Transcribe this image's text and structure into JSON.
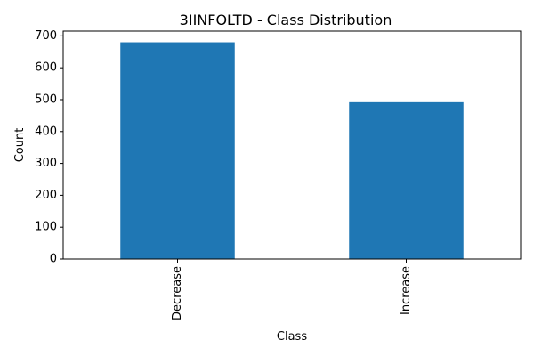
{
  "chart_data": {
    "type": "bar",
    "title": "3IINFOLTD - Class Distribution",
    "xlabel": "Class",
    "ylabel": "Count",
    "categories": [
      "Decrease",
      "Increase"
    ],
    "values": [
      680,
      492
    ],
    "ylim": [
      0,
      715
    ],
    "yticks": [
      0,
      100,
      200,
      300,
      400,
      500,
      600,
      700
    ],
    "bar_color": "#1f77b4",
    "grid": false,
    "legend": "none",
    "xtick_rotation": "vertical"
  }
}
